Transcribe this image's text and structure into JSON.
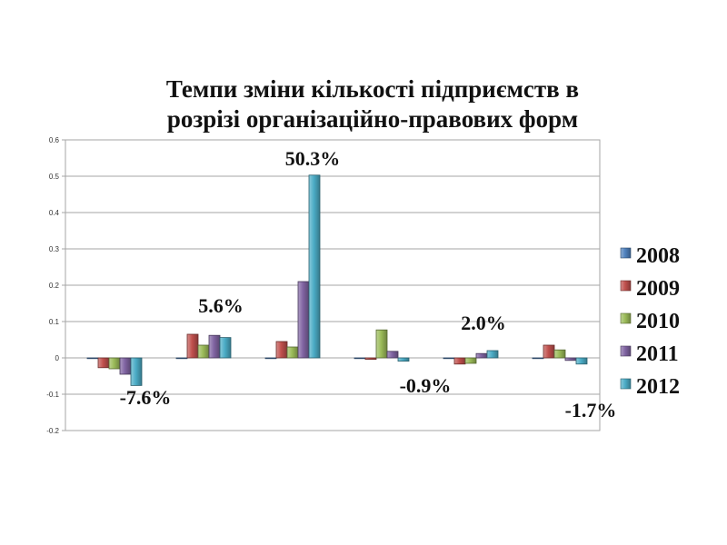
{
  "chart_data": {
    "type": "bar",
    "title_lines": [
      "Темпи зміни кількості підприємств в",
      "розрізі організаційно-правових форм"
    ],
    "categories": [
      "",
      "",
      "",
      "",
      "",
      ""
    ],
    "series": [
      {
        "name": "2008",
        "color": "#4F81BD",
        "values": [
          0,
          0,
          0,
          0,
          0,
          0
        ]
      },
      {
        "name": "2009",
        "color": "#C0504D",
        "values": [
          -0.027,
          0.065,
          0.045,
          -0.004,
          -0.017,
          0.035
        ]
      },
      {
        "name": "2010",
        "color": "#9BBB59",
        "values": [
          -0.03,
          0.035,
          0.03,
          0.077,
          -0.015,
          0.022
        ]
      },
      {
        "name": "2011",
        "color": "#8064A2",
        "values": [
          -0.045,
          0.062,
          0.21,
          0.018,
          0.012,
          -0.007
        ]
      },
      {
        "name": "2012",
        "color": "#4BACC6",
        "values": [
          -0.076,
          0.056,
          0.503,
          -0.009,
          0.02,
          -0.017
        ]
      }
    ],
    "ylim": [
      -0.2,
      0.6
    ],
    "yticks": [
      "-0.2",
      "-0.1",
      "0",
      "0.1",
      "0.2",
      "0.3",
      "0.4",
      "0.5",
      "0.6"
    ],
    "grid": true,
    "legend_position": "right",
    "annotations": [
      "-7.6%",
      "5.6%",
      "50.3%",
      "-0.9%",
      "2.0%",
      "-1.7%"
    ]
  }
}
